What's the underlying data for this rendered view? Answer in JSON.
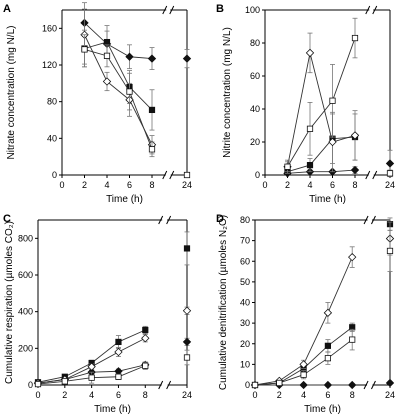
{
  "chart_data": [
    {
      "type": "line",
      "panel_label": "A",
      "xlabel": "Time (h)",
      "ylabel": "Nitrate concentration (mg N/L)",
      "xlim": [
        0,
        24
      ],
      "x_axis_break": [
        9,
        22
      ],
      "x_ticks": [
        "0",
        "2",
        "4",
        "6",
        "8",
        "24"
      ],
      "ylim": [
        0,
        180
      ],
      "y_ticks": [
        "0",
        "40",
        "80",
        "120",
        "160"
      ],
      "x": [
        2,
        4,
        6,
        8,
        24
      ],
      "connect_points": 4,
      "series": [
        {
          "marker": "diamond-filled",
          "values": [
            166,
            143,
            129,
            127,
            127
          ],
          "errors": [
            15,
            14,
            13,
            12,
            10
          ]
        },
        {
          "marker": "square-filled",
          "values": [
            138,
            145,
            96,
            71,
            null
          ],
          "errors": [
            20,
            18,
            18,
            22,
            null
          ]
        },
        {
          "marker": "diamond-open",
          "values": [
            153,
            102,
            82,
            33,
            null
          ],
          "errors": [
            35,
            10,
            18,
            10,
            null
          ]
        },
        {
          "marker": "square-open",
          "values": [
            137,
            130,
            91,
            28,
            0
          ],
          "errors": [
            16,
            12,
            20,
            8,
            2
          ]
        }
      ]
    },
    {
      "type": "line",
      "panel_label": "B",
      "xlabel": "Time (h)",
      "ylabel": "Nitrite concentration (mg N/L)",
      "xlim": [
        0,
        24
      ],
      "x_axis_break": [
        9,
        22
      ],
      "x_ticks": [
        "0",
        "2",
        "4",
        "6",
        "8",
        "24"
      ],
      "ylim": [
        0,
        100
      ],
      "y_ticks": [
        "0",
        "20",
        "40",
        "60",
        "80",
        "100"
      ],
      "x": [
        2,
        4,
        6,
        8,
        24
      ],
      "connect_points": 4,
      "series": [
        {
          "marker": "diamond-filled",
          "values": [
            1,
            2,
            2,
            3,
            7
          ],
          "errors": [
            1,
            1,
            1,
            2,
            8
          ]
        },
        {
          "marker": "square-filled",
          "values": [
            2,
            6,
            22,
            23,
            null
          ],
          "errors": [
            1,
            4,
            15,
            14,
            null
          ]
        },
        {
          "marker": "diamond-open",
          "values": [
            5,
            74,
            20,
            24,
            null
          ],
          "errors": [
            4,
            12,
            18,
            15,
            null
          ]
        },
        {
          "marker": "square-open",
          "values": [
            5,
            28,
            45,
            83,
            1
          ],
          "errors": [
            3,
            16,
            22,
            12,
            2
          ]
        }
      ]
    },
    {
      "type": "line",
      "panel_label": "C",
      "xlabel": "Time (h)",
      "ylabel": "Cumulative respiration (µmoles CO₂)",
      "xlim": [
        0,
        24
      ],
      "x_axis_break": [
        9,
        22
      ],
      "x_ticks": [
        "0",
        "2",
        "4",
        "6",
        "8",
        "24"
      ],
      "ylim": [
        0,
        900
      ],
      "y_ticks": [
        "0",
        "200",
        "400",
        "600",
        "800"
      ],
      "x": [
        0,
        2,
        4,
        6,
        8,
        24
      ],
      "connect_points": 5,
      "series": [
        {
          "marker": "diamond-filled",
          "values": [
            10,
            30,
            70,
            75,
            110,
            235
          ],
          "errors": [
            3,
            5,
            10,
            12,
            15,
            20
          ]
        },
        {
          "marker": "square-filled",
          "values": [
            15,
            45,
            120,
            235,
            300,
            745
          ],
          "errors": [
            5,
            8,
            15,
            35,
            20,
            90
          ]
        },
        {
          "marker": "diamond-open",
          "values": [
            10,
            30,
            100,
            180,
            255,
            405
          ],
          "errors": [
            3,
            6,
            15,
            25,
            20,
            20
          ]
        },
        {
          "marker": "square-open",
          "values": [
            5,
            20,
            40,
            45,
            105,
            150
          ],
          "errors": [
            3,
            5,
            30,
            15,
            20,
            40
          ]
        }
      ]
    },
    {
      "type": "line",
      "panel_label": "D",
      "xlabel": "Time (h)",
      "ylabel": "Cumulative denitrification (µmoles N₂O)",
      "xlim": [
        0,
        24
      ],
      "x_axis_break": [
        9,
        22
      ],
      "x_ticks": [
        "0",
        "2",
        "4",
        "6",
        "8",
        "24"
      ],
      "ylim": [
        0,
        80
      ],
      "y_ticks": [
        "0",
        "10",
        "20",
        "30",
        "40",
        "50",
        "60",
        "70",
        "80"
      ],
      "x": [
        0,
        2,
        4,
        6,
        8,
        24
      ],
      "connect_points": 5,
      "series": [
        {
          "marker": "diamond-filled",
          "values": [
            0,
            0,
            0,
            0,
            0,
            1
          ],
          "errors": [
            0,
            0,
            0,
            0,
            0,
            0.5
          ]
        },
        {
          "marker": "square-filled",
          "values": [
            0,
            1,
            8,
            19,
            28,
            78
          ],
          "errors": [
            0,
            0.5,
            2,
            3,
            2,
            3
          ]
        },
        {
          "marker": "diamond-open",
          "values": [
            0,
            2,
            10,
            35,
            62,
            71
          ],
          "errors": [
            0,
            0.5,
            2,
            5,
            5,
            8
          ]
        },
        {
          "marker": "square-open",
          "values": [
            0,
            1,
            5,
            13,
            22,
            65
          ],
          "errors": [
            0,
            0.5,
            2,
            3,
            5,
            10
          ]
        }
      ]
    }
  ]
}
